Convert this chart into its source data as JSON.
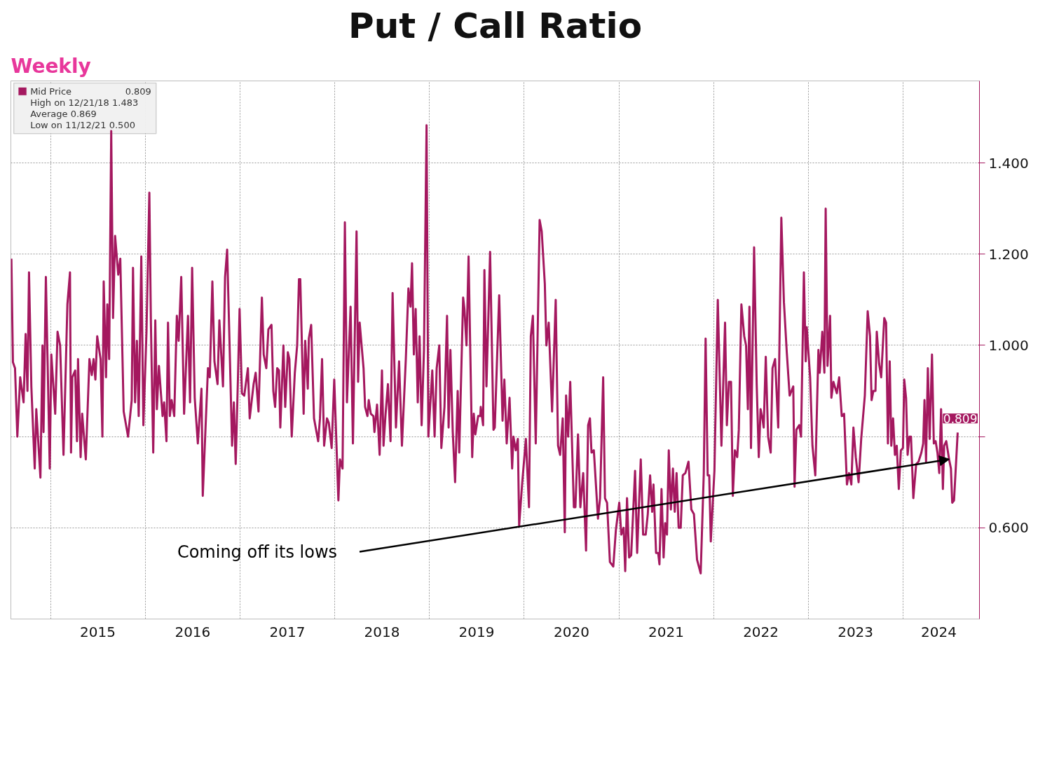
{
  "chart_data": {
    "type": "line",
    "title": "Put / Call Ratio",
    "subtitle": "Weekly",
    "annotations": [
      "0.809",
      "High on 12/21/18 1.483",
      "Average 0.869",
      "Low on 11/12/21 0.500",
      "0.809",
      "Coming off its lows"
    ],
    "legend": "top left",
    "grid": true,
    "line_style": "solid",
    "xlim": [
      "2014-08-01",
      "2024-10-22"
    ],
    "ylim": [
      0.4,
      1.58
    ],
    "xticks": [
      {
        "value": "2015-01-01",
        "label": null
      },
      {
        "value": "2015-07-02",
        "label": "2015"
      },
      {
        "value": "2016-01-01",
        "label": null
      },
      {
        "value": "2016-07-02",
        "label": "2016"
      },
      {
        "value": "2017-01-01",
        "label": null
      },
      {
        "value": "2017-07-02",
        "label": "2017"
      },
      {
        "value": "2018-01-01",
        "label": null
      },
      {
        "value": "2018-07-02",
        "label": "2018"
      },
      {
        "value": "2019-01-01",
        "label": null
      },
      {
        "value": "2019-07-02",
        "label": "2019"
      },
      {
        "value": "2020-01-01",
        "label": null
      },
      {
        "value": "2020-07-02",
        "label": "2020"
      },
      {
        "value": "2021-01-01",
        "label": null
      },
      {
        "value": "2021-07-02",
        "label": "2021"
      },
      {
        "value": "2022-01-01",
        "label": null
      },
      {
        "value": "2022-07-02",
        "label": "2022"
      },
      {
        "value": "2023-01-01",
        "label": null
      },
      {
        "value": "2023-07-02",
        "label": "2023"
      },
      {
        "value": "2024-01-01",
        "label": null
      },
      {
        "value": "2024-05-18",
        "label": "2024"
      }
    ],
    "yticks": [
      {
        "value": 0.6,
        "label": "0.600"
      },
      {
        "value": 0.8,
        "label": null
      },
      {
        "value": 1.0,
        "label": "1.000"
      },
      {
        "value": 1.2,
        "label": "1.200"
      },
      {
        "value": 1.4,
        "label": "1.400"
      }
    ],
    "series": [
      {
        "name": "Mid Price",
        "color": "#a4185f",
        "x": [
          "2014-08-03",
          "2014-08-09",
          "2014-08-17",
          "2014-08-26",
          "2014-09-06",
          "2014-09-19",
          "2014-09-27",
          "2014-10-04",
          "2014-10-10",
          "2014-10-19",
          "2014-11-01",
          "2014-11-07",
          "2014-11-23",
          "2014-12-01",
          "2014-12-05",
          "2014-12-14",
          "2014-12-29",
          "2015-01-04",
          "2015-01-19",
          "2015-01-28",
          "2015-02-07",
          "2015-02-20",
          "2015-03-07",
          "2015-03-17",
          "2015-03-21",
          "2015-03-26",
          "2015-04-06",
          "2015-04-13",
          "2015-04-17",
          "2015-04-27",
          "2015-05-03",
          "2015-05-17",
          "2015-05-31",
          "2015-06-09",
          "2015-06-16",
          "2015-06-23",
          "2015-06-30",
          "2015-07-13",
          "2015-07-20",
          "2015-07-25",
          "2015-08-03",
          "2015-08-08",
          "2015-08-15",
          "2015-08-23",
          "2015-08-30",
          "2015-09-07",
          "2015-09-19",
          "2015-09-27",
          "2015-10-10",
          "2015-10-27",
          "2015-11-10",
          "2015-11-15",
          "2015-11-23",
          "2015-11-30",
          "2015-12-07",
          "2015-12-17",
          "2015-12-25",
          "2016-01-06",
          "2016-01-17",
          "2016-01-23",
          "2016-02-01",
          "2016-02-09",
          "2016-02-15",
          "2016-02-23",
          "2016-03-08",
          "2016-03-14",
          "2016-03-23",
          "2016-03-29",
          "2016-04-05",
          "2016-04-12",
          "2016-04-22",
          "2016-05-02",
          "2016-05-09",
          "2016-05-19",
          "2016-05-30",
          "2016-06-14",
          "2016-06-22",
          "2016-06-30",
          "2016-07-10",
          "2016-07-22",
          "2016-08-05",
          "2016-08-10",
          "2016-08-30",
          "2016-09-06",
          "2016-09-16",
          "2016-09-24",
          "2016-10-06",
          "2016-10-13",
          "2016-10-27",
          "2016-11-04",
          "2016-11-12",
          "2016-11-21",
          "2016-12-01",
          "2016-12-08",
          "2016-12-15",
          "2016-12-24",
          "2016-12-30",
          "2017-01-08",
          "2017-01-17",
          "2017-01-31",
          "2017-02-07",
          "2017-02-22",
          "2017-03-02",
          "2017-03-13",
          "2017-03-26",
          "2017-04-02",
          "2017-04-12",
          "2017-04-20",
          "2017-05-02",
          "2017-05-09",
          "2017-05-16",
          "2017-05-24",
          "2017-05-31",
          "2017-06-05",
          "2017-06-17",
          "2017-06-24",
          "2017-07-04",
          "2017-07-10",
          "2017-07-19",
          "2017-07-31",
          "2017-08-09",
          "2017-08-16",
          "2017-08-21",
          "2017-09-03",
          "2017-09-09",
          "2017-09-19",
          "2017-09-23",
          "2017-10-02",
          "2017-10-13",
          "2017-10-29",
          "2017-11-05",
          "2017-11-13",
          "2017-11-21",
          "2017-12-02",
          "2017-12-09",
          "2017-12-20",
          "2017-12-30",
          "2018-01-15",
          "2018-01-21",
          "2018-01-31",
          "2018-02-09",
          "2018-02-17",
          "2018-03-03",
          "2018-03-12",
          "2018-03-26",
          "2018-04-01",
          "2018-04-07",
          "2018-04-22",
          "2018-04-28",
          "2018-05-07",
          "2018-05-12",
          "2018-05-20",
          "2018-05-30",
          "2018-06-03",
          "2018-06-13",
          "2018-06-23",
          "2018-07-02",
          "2018-07-08",
          "2018-07-16",
          "2018-07-25",
          "2018-08-04",
          "2018-08-12",
          "2018-08-25",
          "2018-09-06",
          "2018-09-17",
          "2018-10-02",
          "2018-10-12",
          "2018-10-20",
          "2018-10-26",
          "2018-11-02",
          "2018-11-09",
          "2018-11-17",
          "2018-11-24",
          "2018-12-02",
          "2018-12-11",
          "2018-12-21",
          "2018-12-28",
          "2019-01-12",
          "2019-01-21",
          "2019-01-29",
          "2019-02-08",
          "2019-02-16",
          "2019-02-28",
          "2019-03-10",
          "2019-03-16",
          "2019-03-23",
          "2019-04-01",
          "2019-04-10",
          "2019-04-20",
          "2019-04-26",
          "2019-05-11",
          "2019-05-16",
          "2019-05-24",
          "2019-06-01",
          "2019-06-15",
          "2019-06-21",
          "2019-06-27",
          "2019-07-08",
          "2019-07-16",
          "2019-07-18",
          "2019-07-27",
          "2019-08-01",
          "2019-08-09",
          "2019-08-23",
          "2019-09-05",
          "2019-09-10",
          "2019-09-27",
          "2019-10-10",
          "2019-10-17",
          "2019-10-26",
          "2019-11-06",
          "2019-11-16",
          "2019-11-21",
          "2019-11-30",
          "2019-12-08",
          "2019-12-13",
          "2019-12-25",
          "2020-01-08",
          "2020-01-20",
          "2020-01-27",
          "2020-02-04",
          "2020-02-15",
          "2020-03-01",
          "2020-03-09",
          "2020-03-21",
          "2020-03-27",
          "2020-04-05",
          "2020-04-18",
          "2020-05-02",
          "2020-05-11",
          "2020-05-19",
          "2020-05-29",
          "2020-06-06",
          "2020-06-11",
          "2020-06-19",
          "2020-06-27",
          "2020-07-11",
          "2020-07-17",
          "2020-07-27",
          "2020-08-05",
          "2020-08-16",
          "2020-08-27",
          "2020-09-04",
          "2020-09-11",
          "2020-09-17",
          "2020-09-26",
          "2020-10-12",
          "2020-10-20",
          "2020-11-01",
          "2020-11-08",
          "2020-11-16",
          "2020-11-27",
          "2020-12-10",
          "2020-12-20",
          "2021-01-02",
          "2021-01-10",
          "2021-01-19",
          "2021-01-25",
          "2021-02-01",
          "2021-02-09",
          "2021-02-17",
          "2021-03-04",
          "2021-03-12",
          "2021-03-26",
          "2021-04-04",
          "2021-04-14",
          "2021-04-22",
          "2021-05-01",
          "2021-05-09",
          "2021-05-14",
          "2021-05-24",
          "2021-06-01",
          "2021-06-06",
          "2021-06-14",
          "2021-06-22",
          "2021-06-28",
          "2021-07-05",
          "2021-07-12",
          "2021-07-20",
          "2021-07-28",
          "2021-08-04",
          "2021-08-11",
          "2021-08-19",
          "2021-08-27",
          "2021-09-04",
          "2021-09-14",
          "2021-09-26",
          "2021-10-07",
          "2021-10-17",
          "2021-10-29",
          "2021-11-12",
          "2021-11-24",
          "2021-12-01",
          "2021-12-09",
          "2021-12-15",
          "2021-12-21",
          "2022-01-04",
          "2022-01-17",
          "2022-01-31",
          "2022-02-14",
          "2022-02-21",
          "2022-03-01",
          "2022-03-09",
          "2022-03-16",
          "2022-03-24",
          "2022-04-02",
          "2022-04-08",
          "2022-04-18",
          "2022-04-29",
          "2022-05-06",
          "2022-05-13",
          "2022-05-19",
          "2022-05-25",
          "2022-06-06",
          "2022-06-16",
          "2022-06-24",
          "2022-07-01",
          "2022-07-08",
          "2022-07-13",
          "2022-07-21",
          "2022-07-30",
          "2022-08-09",
          "2022-08-16",
          "2022-08-26",
          "2022-09-07",
          "2022-09-19",
          "2022-09-29",
          "2022-10-10",
          "2022-10-21",
          "2022-11-04",
          "2022-11-09",
          "2022-11-16",
          "2022-11-27",
          "2022-12-04",
          "2022-12-15",
          "2022-12-22",
          "2022-12-26",
          "2023-01-08",
          "2023-01-17",
          "2023-01-28",
          "2023-02-09",
          "2023-02-14",
          "2023-02-24",
          "2023-03-04",
          "2023-03-09",
          "2023-03-16",
          "2023-03-26",
          "2023-03-31",
          "2023-04-08",
          "2023-04-21",
          "2023-04-30",
          "2023-05-10",
          "2023-05-19",
          "2023-05-30",
          "2023-06-07",
          "2023-06-16",
          "2023-06-24",
          "2023-07-03",
          "2023-07-14",
          "2023-07-24",
          "2023-08-07",
          "2023-08-18",
          "2023-08-27",
          "2023-09-02",
          "2023-09-09",
          "2023-09-17",
          "2023-09-22",
          "2023-10-01",
          "2023-10-09",
          "2023-10-21",
          "2023-10-28",
          "2023-11-04",
          "2023-11-11",
          "2023-11-17",
          "2023-11-24",
          "2023-12-01",
          "2023-12-08",
          "2023-12-16",
          "2023-12-24",
          "2024-01-01",
          "2024-01-06",
          "2024-01-13",
          "2024-01-19",
          "2024-01-26",
          "2024-02-01",
          "2024-02-10",
          "2024-02-21",
          "2024-03-01",
          "2024-03-12",
          "2024-03-19",
          "2024-03-24",
          "2024-03-30",
          "2024-04-06",
          "2024-04-13",
          "2024-04-22",
          "2024-04-29",
          "2024-05-06",
          "2024-05-13",
          "2024-05-20",
          "2024-05-27",
          "2024-06-03",
          "2024-06-08",
          "2024-06-16",
          "2024-06-27",
          "2024-07-04",
          "2024-07-09",
          "2024-07-16",
          "2024-07-30"
        ],
        "values": [
          1.19,
          0.963,
          0.95,
          0.8,
          0.93,
          0.875,
          1.025,
          0.9,
          1.16,
          0.91,
          0.73,
          0.86,
          0.71,
          1.0,
          0.81,
          1.15,
          0.73,
          0.98,
          0.85,
          1.03,
          1.0,
          0.76,
          1.09,
          1.16,
          0.765,
          0.93,
          0.945,
          0.79,
          0.97,
          0.755,
          0.85,
          0.75,
          0.97,
          0.935,
          0.97,
          0.925,
          1.02,
          0.97,
          0.8,
          1.14,
          0.93,
          1.09,
          0.97,
          1.47,
          1.06,
          1.24,
          1.155,
          1.19,
          0.855,
          0.8,
          0.88,
          1.17,
          0.875,
          1.01,
          0.845,
          1.195,
          0.825,
          1.03,
          1.335,
          1.05,
          0.765,
          1.055,
          0.86,
          0.955,
          0.845,
          0.875,
          0.79,
          1.05,
          0.845,
          0.88,
          0.845,
          1.065,
          1.01,
          1.15,
          0.85,
          1.065,
          0.875,
          1.17,
          0.885,
          0.785,
          0.905,
          0.67,
          0.95,
          0.93,
          1.14,
          0.965,
          0.915,
          1.055,
          0.91,
          1.15,
          1.21,
          1.01,
          0.78,
          0.875,
          0.74,
          0.935,
          1.08,
          0.895,
          0.89,
          0.95,
          0.84,
          0.915,
          0.94,
          0.855,
          1.105,
          0.98,
          0.95,
          1.035,
          1.045,
          0.9,
          0.865,
          0.95,
          0.945,
          0.82,
          1.0,
          0.865,
          0.985,
          0.97,
          0.8,
          0.94,
          1.0,
          1.145,
          1.145,
          0.85,
          1.01,
          0.905,
          1.015,
          1.045,
          0.84,
          0.79,
          0.84,
          0.97,
          0.78,
          0.84,
          0.83,
          0.775,
          0.925,
          0.66,
          0.75,
          0.73,
          1.27,
          0.875,
          1.085,
          0.785,
          1.25,
          0.92,
          1.05,
          0.95,
          0.865,
          0.845,
          0.88,
          0.85,
          0.845,
          0.81,
          0.87,
          0.76,
          0.945,
          0.78,
          0.85,
          0.915,
          0.79,
          1.115,
          0.82,
          0.965,
          0.78,
          0.97,
          1.125,
          1.085,
          1.18,
          0.98,
          1.08,
          0.875,
          1.02,
          0.825,
          0.99,
          1.483,
          0.8,
          0.945,
          0.8,
          0.95,
          1.0,
          0.775,
          0.865,
          1.065,
          0.82,
          0.99,
          0.81,
          0.7,
          0.9,
          0.765,
          1.105,
          1.08,
          1.0,
          1.195,
          0.755,
          0.85,
          0.805,
          0.845,
          0.845,
          0.865,
          0.825,
          1.165,
          0.91,
          1.205,
          0.815,
          0.82,
          1.11,
          0.835,
          0.925,
          0.785,
          0.885,
          0.73,
          0.8,
          0.77,
          0.795,
          0.605,
          0.7,
          0.795,
          0.645,
          1.02,
          1.065,
          0.785,
          1.275,
          1.25,
          1.135,
          1.0,
          1.05,
          0.855,
          1.1,
          0.78,
          0.76,
          0.84,
          0.59,
          0.89,
          0.8,
          0.92,
          0.645,
          0.645,
          0.805,
          0.645,
          0.72,
          0.55,
          0.825,
          0.84,
          0.765,
          0.77,
          0.62,
          0.665,
          0.93,
          0.665,
          0.655,
          0.525,
          0.515,
          0.595,
          0.655,
          0.585,
          0.6,
          0.505,
          0.665,
          0.535,
          0.54,
          0.725,
          0.545,
          0.75,
          0.585,
          0.585,
          0.63,
          0.715,
          0.635,
          0.695,
          0.545,
          0.545,
          0.52,
          0.685,
          0.535,
          0.61,
          0.585,
          0.77,
          0.64,
          0.73,
          0.635,
          0.72,
          0.6,
          0.6,
          0.715,
          0.72,
          0.745,
          0.64,
          0.63,
          0.53,
          0.5,
          0.72,
          1.015,
          0.715,
          0.715,
          0.57,
          0.725,
          1.1,
          0.78,
          1.05,
          0.825,
          0.92,
          0.92,
          0.67,
          0.77,
          0.755,
          0.815,
          1.09,
          1.02,
          1.0,
          0.86,
          1.085,
          0.775,
          1.215,
          0.915,
          0.755,
          0.86,
          0.84,
          0.82,
          0.975,
          0.8,
          0.765,
          0.95,
          0.97,
          0.82,
          1.28,
          1.095,
          0.985,
          0.89,
          0.91,
          0.69,
          0.815,
          0.825,
          0.8,
          1.16,
          0.965,
          1.04,
          0.93,
          0.78,
          0.715,
          0.99,
          0.94,
          1.03,
          0.94,
          1.3,
          0.955,
          1.065,
          0.885,
          0.92,
          0.895,
          0.93,
          0.845,
          0.85,
          0.695,
          0.72,
          0.695,
          0.82,
          0.755,
          0.7,
          0.795,
          0.89,
          1.075,
          1.02,
          0.88,
          0.9,
          0.9,
          1.03,
          0.96,
          0.93,
          1.06,
          1.05,
          0.785,
          0.965,
          0.78,
          0.84,
          0.76,
          0.78,
          0.685,
          0.77,
          0.775,
          0.925,
          0.885,
          0.76,
          0.8,
          0.8,
          0.665,
          0.74,
          0.745,
          0.765,
          0.785,
          0.88,
          0.745,
          0.95,
          0.795,
          0.98,
          0.785,
          0.79,
          0.765,
          0.72,
          0.86,
          0.685,
          0.78,
          0.79,
          0.75,
          0.73,
          0.655,
          0.66,
          0.809
        ]
      }
    ]
  }
}
